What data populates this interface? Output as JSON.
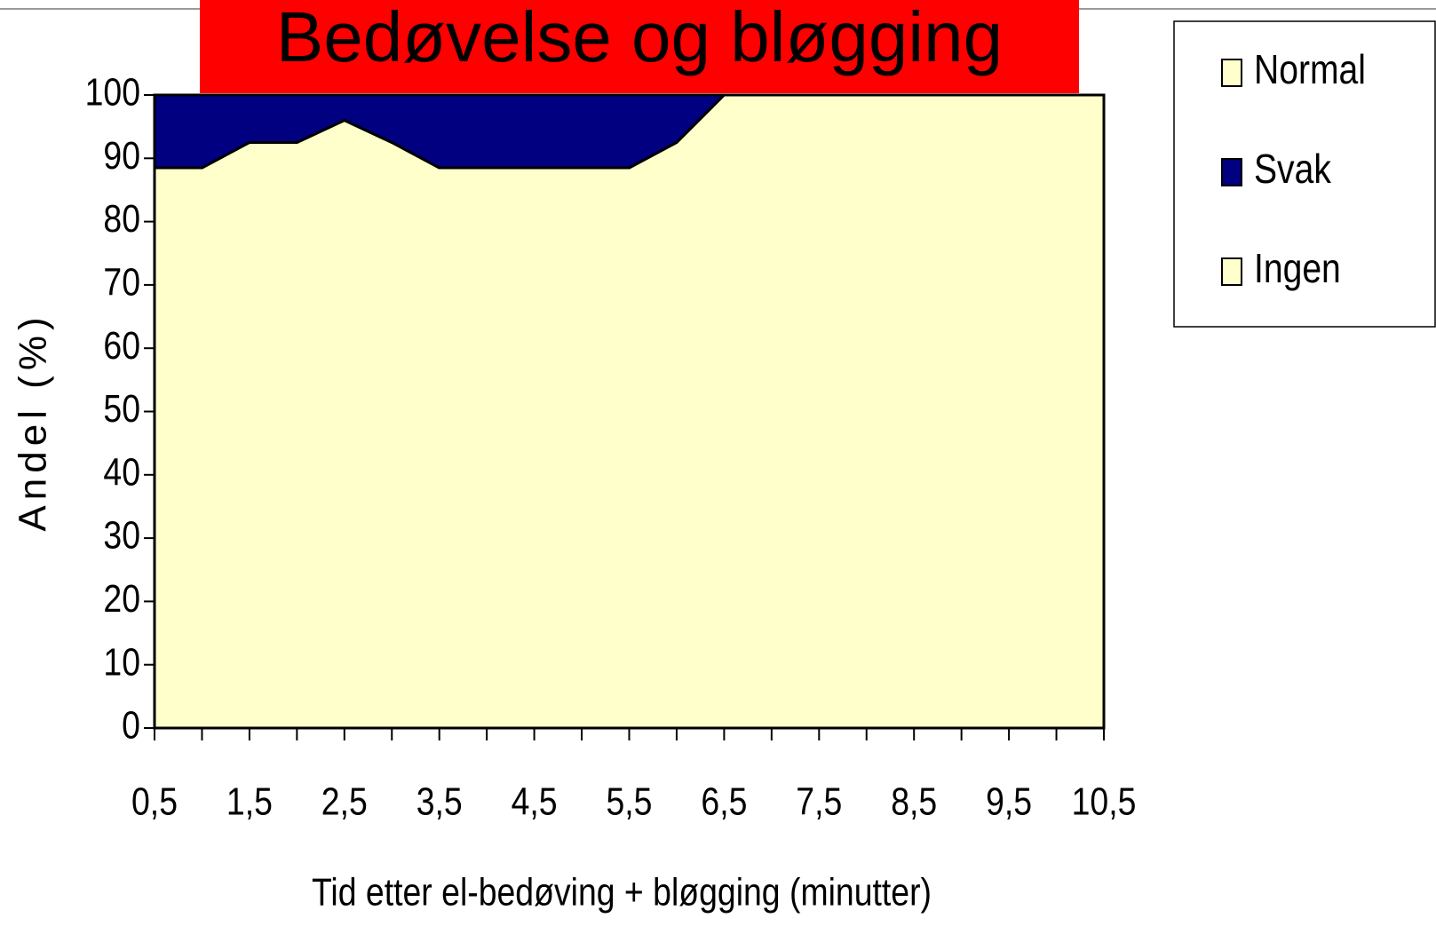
{
  "chart_data": {
    "type": "stacked_area",
    "title": "Bedøvelse og bløgging",
    "xlabel": "Tid etter el-bedøving + bløgging (minutter)",
    "ylabel": "Andel (%)",
    "x": [
      0.5,
      1,
      1.5,
      2,
      2.5,
      3,
      3.5,
      4,
      4.5,
      5,
      5.5,
      6,
      6.5,
      7,
      7.5,
      8,
      8.5,
      9,
      9.5,
      10,
      10.5
    ],
    "series": [
      {
        "name": "Normal",
        "color": "#ffffcc",
        "values": [
          0,
          0,
          0,
          0,
          0,
          0,
          0,
          0,
          0,
          0,
          0,
          0,
          0,
          0,
          0,
          0,
          0,
          0,
          0,
          0,
          0
        ]
      },
      {
        "name": "Svak",
        "color": "#000080",
        "values": [
          11.5,
          11.5,
          7.5,
          7.5,
          4,
          7.5,
          11.5,
          11.5,
          11.5,
          11.5,
          11.5,
          7.5,
          0,
          0,
          0,
          0,
          0,
          0,
          0,
          0,
          0
        ]
      },
      {
        "name": "Ingen",
        "color": "#ffffcc",
        "values": [
          88.5,
          88.5,
          92.5,
          92.5,
          96,
          92.5,
          88.5,
          88.5,
          88.5,
          88.5,
          88.5,
          92.5,
          100,
          100,
          100,
          100,
          100,
          100,
          100,
          100,
          100
        ]
      }
    ],
    "xlim": [
      0.5,
      10.5
    ],
    "xticks": [
      {
        "value": 0.5,
        "label": "0,5"
      },
      {
        "value": 1.5,
        "label": "1,5"
      },
      {
        "value": 2.5,
        "label": "2,5"
      },
      {
        "value": 3.5,
        "label": "3,5"
      },
      {
        "value": 4.5,
        "label": "4,5"
      },
      {
        "value": 5.5,
        "label": "5,5"
      },
      {
        "value": 6.5,
        "label": "6,5"
      },
      {
        "value": 7.5,
        "label": "7,5"
      },
      {
        "value": 8.5,
        "label": "8,5"
      },
      {
        "value": 9.5,
        "label": "9,5"
      },
      {
        "value": 10.5,
        "label": "10,5"
      }
    ],
    "ylim": [
      0,
      100
    ],
    "yticks": [
      0,
      10,
      20,
      30,
      40,
      50,
      60,
      70,
      80,
      90,
      100
    ],
    "legend": "right"
  }
}
